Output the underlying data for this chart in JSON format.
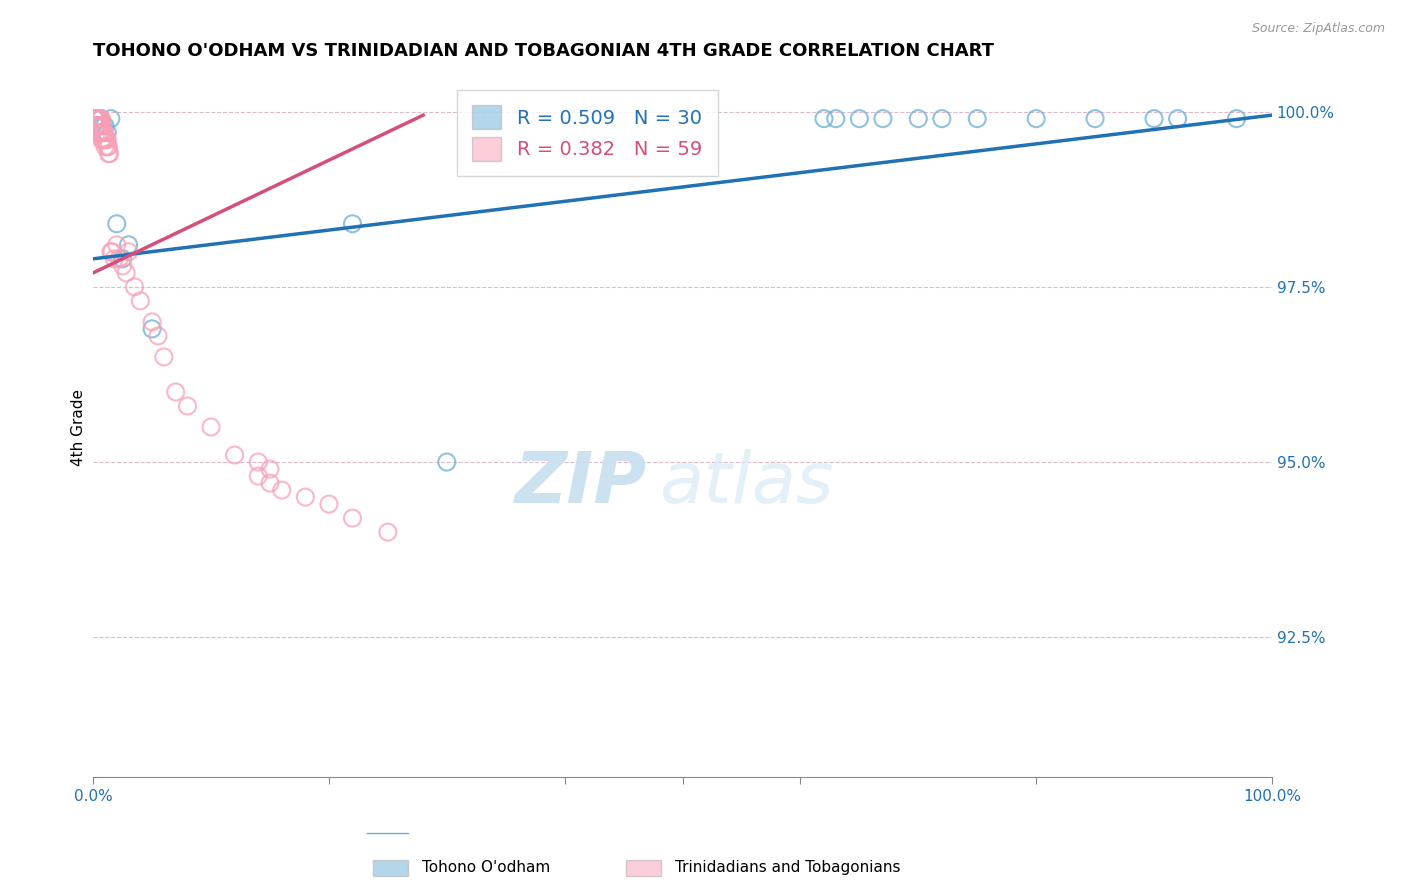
{
  "title": "TOHONO O'ODHAM VS TRINIDADIAN AND TOBAGONIAN 4TH GRADE CORRELATION CHART",
  "source": "Source: ZipAtlas.com",
  "ylabel": "4th Grade",
  "ylabel_right_labels": [
    "100.0%",
    "97.5%",
    "95.0%",
    "92.5%"
  ],
  "ylabel_right_values": [
    1.0,
    0.975,
    0.95,
    0.925
  ],
  "legend_blue_r": "R = 0.509",
  "legend_blue_n": "N = 30",
  "legend_pink_r": "R = 0.382",
  "legend_pink_n": "N = 59",
  "blue_color": "#6baed6",
  "pink_color": "#fa9fb5",
  "blue_line_color": "#2171b5",
  "pink_line_color": "#d44f7a",
  "watermark_zip": "ZIP",
  "watermark_atlas": "atlas",
  "xlim": [
    0.0,
    1.0
  ],
  "ylim": [
    0.905,
    1.005
  ],
  "blue_scatter_x": [
    0.001,
    0.002,
    0.003,
    0.004,
    0.005,
    0.005,
    0.006,
    0.007,
    0.008,
    0.01,
    0.012,
    0.015,
    0.02,
    0.025,
    0.03,
    0.05,
    0.22,
    0.3,
    0.62,
    0.63,
    0.65,
    0.67,
    0.7,
    0.72,
    0.75,
    0.8,
    0.85,
    0.9,
    0.92,
    0.97
  ],
  "blue_scatter_y": [
    0.999,
    0.999,
    0.999,
    0.999,
    0.999,
    0.998,
    0.999,
    0.998,
    0.998,
    0.998,
    0.997,
    0.999,
    0.984,
    0.979,
    0.981,
    0.969,
    0.984,
    0.95,
    0.999,
    0.999,
    0.999,
    0.999,
    0.999,
    0.999,
    0.999,
    0.999,
    0.999,
    0.999,
    0.999,
    0.999
  ],
  "pink_scatter_x": [
    0.001,
    0.001,
    0.002,
    0.002,
    0.002,
    0.003,
    0.003,
    0.003,
    0.004,
    0.004,
    0.005,
    0.005,
    0.005,
    0.006,
    0.006,
    0.006,
    0.007,
    0.007,
    0.007,
    0.008,
    0.008,
    0.008,
    0.009,
    0.009,
    0.01,
    0.01,
    0.01,
    0.011,
    0.012,
    0.012,
    0.013,
    0.013,
    0.014,
    0.015,
    0.016,
    0.018,
    0.02,
    0.022,
    0.025,
    0.028,
    0.03,
    0.035,
    0.04,
    0.05,
    0.055,
    0.06,
    0.07,
    0.08,
    0.1,
    0.12,
    0.14,
    0.14,
    0.15,
    0.15,
    0.16,
    0.18,
    0.2,
    0.22,
    0.25
  ],
  "pink_scatter_y": [
    0.999,
    0.998,
    0.999,
    0.999,
    0.998,
    0.999,
    0.998,
    0.997,
    0.999,
    0.998,
    0.999,
    0.998,
    0.997,
    0.999,
    0.998,
    0.997,
    0.999,
    0.997,
    0.996,
    0.998,
    0.997,
    0.996,
    0.997,
    0.996,
    0.997,
    0.996,
    0.995,
    0.996,
    0.996,
    0.995,
    0.995,
    0.994,
    0.994,
    0.98,
    0.98,
    0.979,
    0.981,
    0.979,
    0.978,
    0.977,
    0.98,
    0.975,
    0.973,
    0.97,
    0.968,
    0.965,
    0.96,
    0.958,
    0.955,
    0.951,
    0.95,
    0.948,
    0.949,
    0.947,
    0.946,
    0.945,
    0.944,
    0.942,
    0.94
  ],
  "blue_trend_x": [
    0.0,
    1.0
  ],
  "blue_trend_y": [
    0.979,
    0.9995
  ],
  "pink_trend_x": [
    0.0,
    0.28
  ],
  "pink_trend_y": [
    0.977,
    0.9995
  ]
}
